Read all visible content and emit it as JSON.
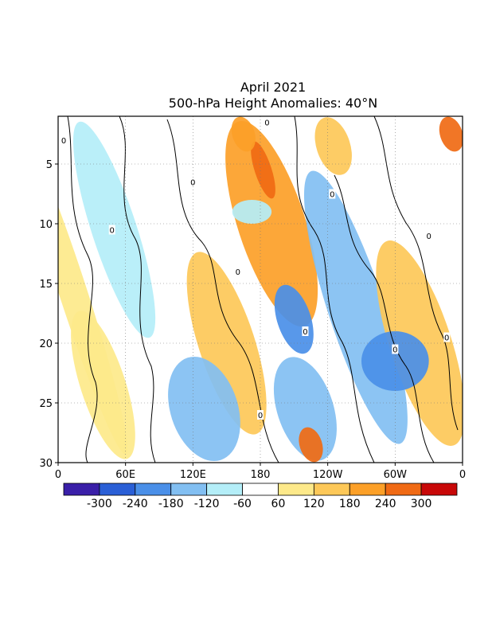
{
  "chart_data": {
    "type": "heatmap",
    "title": "April 2021",
    "subtitle": "500-hPa Height Anomalies: 40°N",
    "xlabel": "",
    "ylabel": "",
    "x_range": [
      0,
      360
    ],
    "y_range": [
      1,
      30
    ],
    "y_reversed": true,
    "x_ticks": [
      "0",
      "60E",
      "120E",
      "180",
      "120W",
      "60W",
      "0"
    ],
    "y_ticks": [
      "5",
      "10",
      "15",
      "20",
      "25",
      "30"
    ],
    "y_tick_values": [
      5,
      10,
      15,
      20,
      25,
      30
    ],
    "grid": true,
    "colorbar": {
      "labels": [
        "-300",
        "-240",
        "-180",
        "-120",
        "-60",
        "60",
        "120",
        "180",
        "240",
        "300"
      ],
      "colors": [
        "#3a1fa8",
        "#2a5fd6",
        "#4a8fe8",
        "#82bff2",
        "#b4eef8",
        "#ffffff",
        "#fde98a",
        "#fdc858",
        "#fca028",
        "#f06a14",
        "#c80808"
      ],
      "placement": "bottom"
    },
    "contour_label": "0",
    "bands": [
      {
        "x": [
          160,
          220
        ],
        "y": [
          1,
          19
        ],
        "value": 180
      },
      {
        "x": [
          175,
          190
        ],
        "y": [
          3,
          8
        ],
        "value": 270
      },
      {
        "x": [
          155,
          175
        ],
        "y": [
          1,
          4
        ],
        "value": 220
      },
      {
        "x": [
          230,
          260
        ],
        "y": [
          1,
          6
        ],
        "value": 150
      },
      {
        "x": [
          240,
          290
        ],
        "y": [
          5,
          29
        ],
        "value": -160
      },
      {
        "x": [
          295,
          350
        ],
        "y": [
          11,
          29
        ],
        "value": 120
      },
      {
        "x": [
          195,
          225
        ],
        "y": [
          15,
          21
        ],
        "value": -210
      },
      {
        "x": [
          195,
          245
        ],
        "y": [
          21,
          30
        ],
        "value": -160
      },
      {
        "x": [
          125,
          175
        ],
        "y": [
          12,
          28
        ],
        "value": 130
      },
      {
        "x": [
          155,
          190
        ],
        "y": [
          8,
          10
        ],
        "value": -120
      },
      {
        "x": [
          100,
          160
        ],
        "y": [
          21,
          30
        ],
        "value": -150
      },
      {
        "x": [
          20,
          60
        ],
        "y": [
          17,
          30
        ],
        "value": 110
      },
      {
        "x": [
          0,
          25
        ],
        "y": [
          1,
          30
        ],
        "value": 90
      },
      {
        "x": [
          30,
          70
        ],
        "y": [
          1,
          20
        ],
        "value": -80
      },
      {
        "x": [
          270,
          330
        ],
        "y": [
          19,
          24
        ],
        "value": -200
      },
      {
        "x": [
          215,
          235
        ],
        "y": [
          27,
          30
        ],
        "value": 260
      },
      {
        "x": [
          340,
          360
        ],
        "y": [
          1,
          4
        ],
        "value": 250
      }
    ]
  }
}
